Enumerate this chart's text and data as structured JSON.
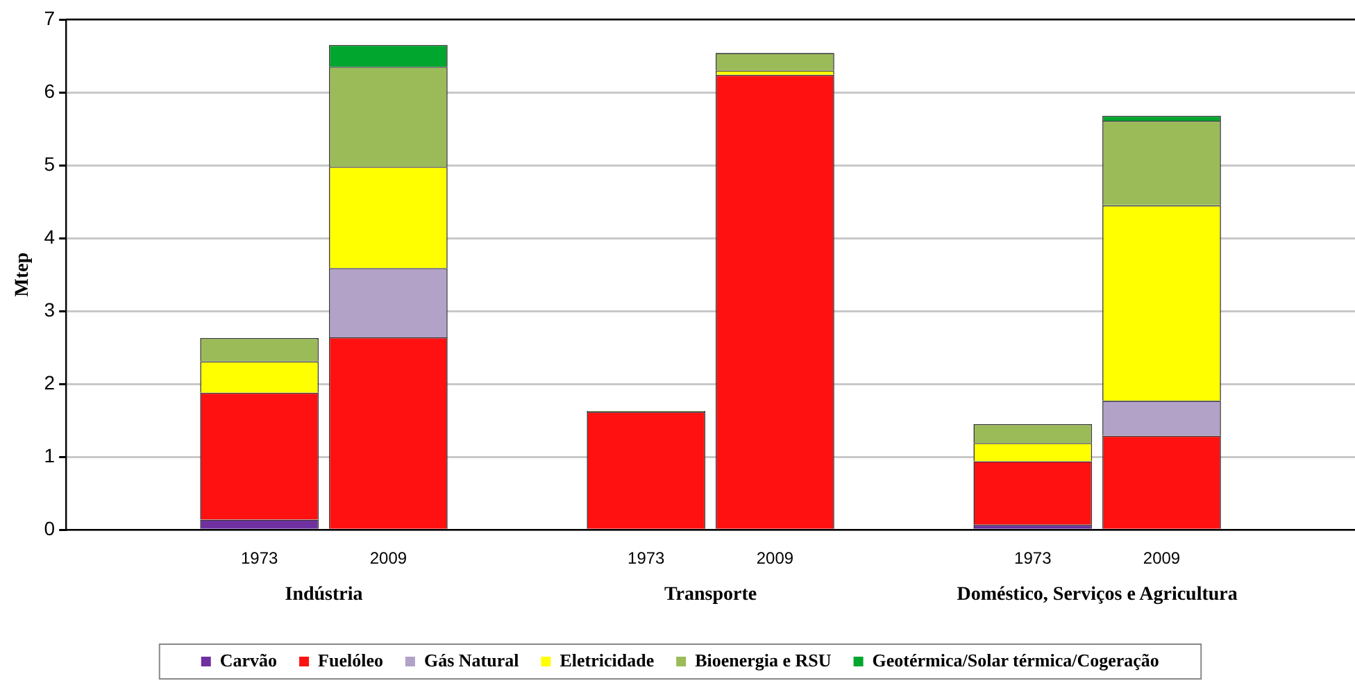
{
  "chart_data": {
    "type": "bar",
    "stacked": true,
    "ylabel": "Mtep",
    "categories": [
      null,
      "1973",
      "2009",
      null,
      "1973",
      "2009",
      null,
      "1973",
      "2009",
      null
    ],
    "series": [
      {
        "name": "Carvão",
        "color": "#7030a0",
        "values": [
          null,
          0.14,
          null,
          null,
          null,
          null,
          null,
          0.07,
          null,
          null
        ]
      },
      {
        "name": "Fuelóleo",
        "color": "#ff1111",
        "values": [
          null,
          1.74,
          2.64,
          null,
          1.62,
          6.24,
          null,
          0.87,
          1.29,
          null
        ]
      },
      {
        "name": "Gás Natural",
        "color": "#b3a2c7",
        "values": [
          null,
          0,
          0.95,
          null,
          0,
          null,
          null,
          0,
          0.48,
          null
        ]
      },
      {
        "name": "Eletricidade",
        "color": "#ffff00",
        "values": [
          null,
          0.43,
          1.39,
          null,
          0,
          0.06,
          null,
          0.25,
          2.68,
          null
        ]
      },
      {
        "name": "Bioenergia e RSU",
        "color": "#9bbb59",
        "values": [
          null,
          0.32,
          1.37,
          null,
          0.01,
          0.24,
          null,
          0.26,
          1.16,
          null
        ]
      },
      {
        "name": "Geotérmica/Solar térmica/Cogeração",
        "color": "#00a62e",
        "values": [
          null,
          0,
          0.3,
          null,
          0,
          0,
          null,
          0,
          0.07,
          null
        ]
      }
    ],
    "annotations": [
      "Indústria",
      "Transporte",
      "Doméstico, Serviços e Agricultura"
    ],
    "ylim": [
      0,
      7
    ],
    "yticks": [
      0,
      1,
      2,
      3,
      4,
      5,
      6,
      7
    ],
    "grid": "y",
    "legend": "bottom"
  }
}
